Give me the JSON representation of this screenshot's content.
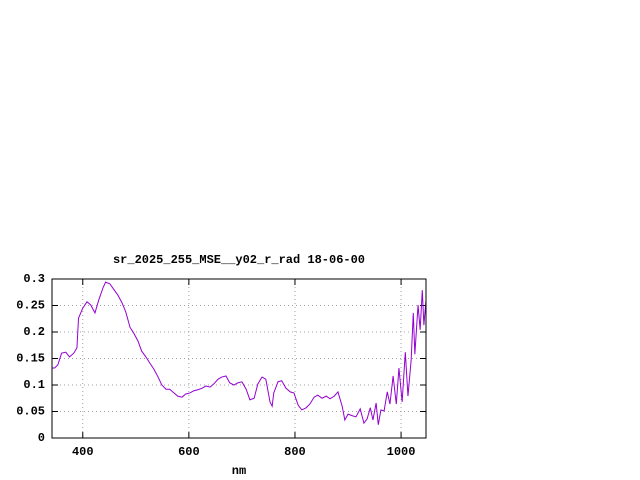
{
  "chart_data": {
    "type": "line",
    "title": "sr_2025_255_MSE__y02_r_rad 18-06-00",
    "x_label": "nm",
    "color": "#9400d3",
    "grid": true,
    "xlim": [
      342,
      1047
    ],
    "ylim": [
      0,
      0.3
    ],
    "xticks": [
      400,
      600,
      800,
      1000
    ],
    "yticks": [
      0,
      0.05,
      0.1,
      0.15,
      0.2,
      0.25,
      0.3
    ],
    "x": [
      342,
      347,
      353,
      360,
      368,
      375,
      383,
      389,
      392,
      400,
      408,
      415,
      423,
      430,
      438,
      443,
      451,
      458,
      466,
      474,
      481,
      489,
      496,
      504,
      511,
      519,
      526,
      534,
      542,
      549,
      557,
      564,
      572,
      579,
      587,
      594,
      602,
      609,
      617,
      625,
      632,
      640,
      647,
      655,
      662,
      670,
      677,
      685,
      692,
      700,
      708,
      715,
      723,
      730,
      738,
      745,
      753,
      757,
      760,
      768,
      775,
      783,
      791,
      798,
      806,
      813,
      821,
      828,
      836,
      843,
      851,
      859,
      866,
      874,
      881,
      889,
      894,
      900,
      908,
      915,
      923,
      930,
      936,
      942,
      947,
      953,
      957,
      962,
      968,
      974,
      979,
      985,
      991,
      996,
      1002,
      1008,
      1013,
      1019,
      1023,
      1026,
      1032,
      1036,
      1040,
      1043,
      1047
    ],
    "values": [
      0.132,
      0.132,
      0.138,
      0.16,
      0.162,
      0.153,
      0.16,
      0.17,
      0.226,
      0.245,
      0.257,
      0.251,
      0.236,
      0.26,
      0.283,
      0.294,
      0.291,
      0.281,
      0.27,
      0.255,
      0.238,
      0.209,
      0.198,
      0.183,
      0.164,
      0.153,
      0.142,
      0.13,
      0.115,
      0.1,
      0.092,
      0.092,
      0.085,
      0.079,
      0.077,
      0.083,
      0.085,
      0.089,
      0.091,
      0.094,
      0.098,
      0.096,
      0.102,
      0.111,
      0.115,
      0.117,
      0.104,
      0.1,
      0.104,
      0.106,
      0.092,
      0.072,
      0.075,
      0.102,
      0.115,
      0.111,
      0.068,
      0.06,
      0.085,
      0.106,
      0.108,
      0.094,
      0.087,
      0.085,
      0.062,
      0.053,
      0.057,
      0.064,
      0.077,
      0.081,
      0.075,
      0.079,
      0.074,
      0.079,
      0.087,
      0.06,
      0.034,
      0.045,
      0.042,
      0.04,
      0.055,
      0.028,
      0.036,
      0.057,
      0.034,
      0.066,
      0.025,
      0.053,
      0.051,
      0.087,
      0.064,
      0.117,
      0.064,
      0.132,
      0.068,
      0.162,
      0.079,
      0.147,
      0.236,
      0.158,
      0.251,
      0.204,
      0.279,
      0.213,
      0.26
    ]
  }
}
